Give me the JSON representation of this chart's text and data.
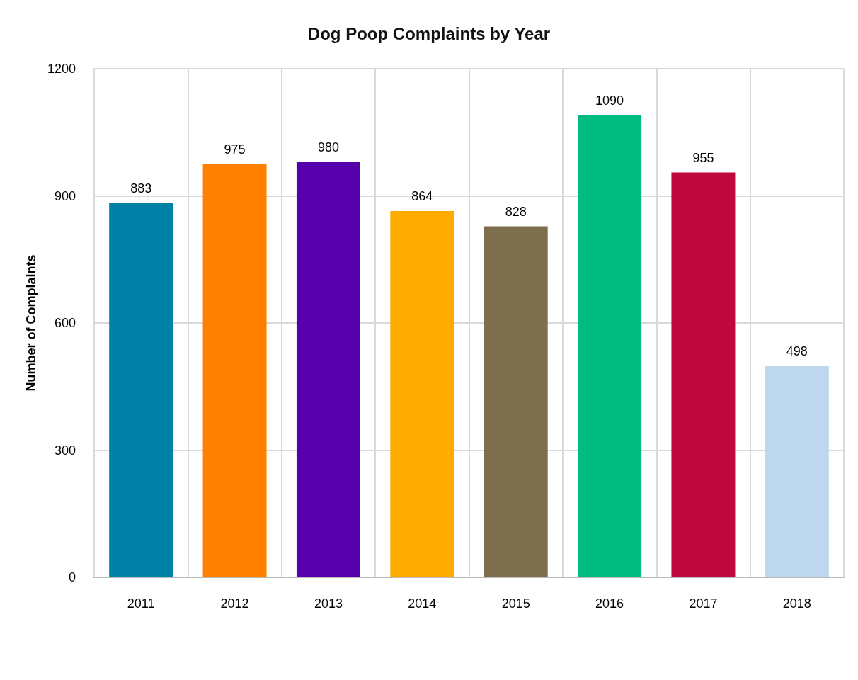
{
  "chart_data": {
    "type": "bar",
    "title": "Dog Poop Complaints by Year",
    "ylabel": "Number of Complaints",
    "categories": [
      "2011",
      "2012",
      "2013",
      "2014",
      "2015",
      "2016",
      "2017",
      "2018"
    ],
    "values": [
      883,
      975,
      980,
      864,
      828,
      1090,
      955,
      498
    ],
    "colors": [
      "#0081a7",
      "#ff7f00",
      "#5500aa",
      "#ffab00",
      "#7d6e4e",
      "#00bc80",
      "#be063f",
      "#bdd7ee"
    ],
    "ylim": [
      0,
      1200
    ],
    "yticks": [
      0,
      300,
      600,
      900,
      1200
    ],
    "grid": true,
    "data_labels": true
  }
}
